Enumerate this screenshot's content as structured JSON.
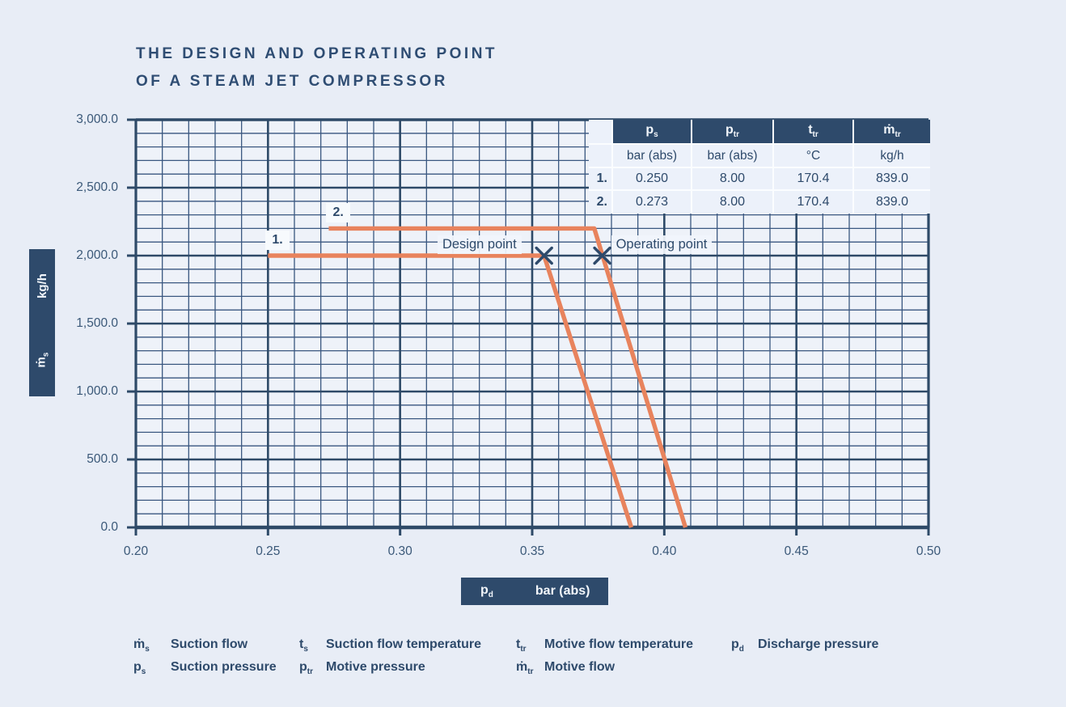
{
  "title": {
    "line1": "THE DESIGN AND OPERATING POINT",
    "line2": "OF A STEAM JET COMPRESSOR"
  },
  "colors": {
    "navy": "#2e4a6b",
    "grid_major": "#2e4a68",
    "grid_minor": "#3a5780",
    "curve_orange": "#e8835d",
    "page_bg": "#e8edf6",
    "plot_bg": "#eef2f9",
    "label_box_bg": "#f7fafd"
  },
  "chart_data": {
    "type": "line",
    "title": "THE DESIGN AND OPERATING POINT OF A STEAM JET COMPRESSOR",
    "grid": true,
    "legend_position": "none",
    "x_axis": {
      "symbol": {
        "base": "p",
        "sub": "d"
      },
      "unit": "bar (abs)",
      "min": 0.2,
      "max": 0.5,
      "major_step": 0.05,
      "minor_step": 0.01,
      "tick_labels": [
        "0.20",
        "0.25",
        "0.30",
        "0.35",
        "0.40",
        "0.45",
        "0.50"
      ]
    },
    "y_axis": {
      "symbol": {
        "base": "ṁ",
        "sub": "s"
      },
      "unit": "kg/h",
      "min": 0,
      "max": 3000,
      "major_step": 500,
      "minor_step": 100,
      "tick_labels": [
        "0.0",
        "500.0",
        "1,000.0",
        "1,500.0",
        "2,000.0",
        "2,500.0",
        "3,000.0"
      ]
    },
    "series": [
      {
        "name": "1.",
        "color": "#e8835d",
        "points": [
          [
            0.25,
            2000
          ],
          [
            0.3545,
            2000
          ],
          [
            0.3875,
            0
          ]
        ]
      },
      {
        "name": "2.",
        "color": "#e8835d",
        "points": [
          [
            0.273,
            2200
          ],
          [
            0.3735,
            2200
          ],
          [
            0.408,
            0
          ]
        ]
      }
    ],
    "annotations": [
      {
        "label": "Design point",
        "x": 0.3545,
        "y": 2000,
        "label_side": "left"
      },
      {
        "label": "Operating point",
        "x": 0.3765,
        "y": 2000,
        "label_side": "right"
      }
    ]
  },
  "table": {
    "row_labels": [
      "1.",
      "2."
    ],
    "columns": [
      {
        "base": "p",
        "sub": "s"
      },
      {
        "base": "p",
        "sub": "tr"
      },
      {
        "base": "t",
        "sub": "tr"
      },
      {
        "base": "ṁ",
        "sub": "tr"
      }
    ],
    "units": [
      "bar (abs)",
      "bar (abs)",
      "°C",
      "kg/h"
    ],
    "rows": [
      [
        "0.250",
        "8.00",
        "170.4",
        "839.0"
      ],
      [
        "0.273",
        "8.00",
        "170.4",
        "839.0"
      ]
    ]
  },
  "legend": {
    "groups": [
      {
        "items": [
          {
            "symbol": {
              "base": "ṁ",
              "sub": "s"
            },
            "label": "Suction flow"
          },
          {
            "symbol": {
              "base": "p",
              "sub": "s"
            },
            "label": "Suction pressure"
          }
        ]
      },
      {
        "items": [
          {
            "symbol": {
              "base": "t",
              "sub": "s"
            },
            "label": "Suction flow temperature"
          },
          {
            "symbol": {
              "base": "p",
              "sub": "tr"
            },
            "label": "Motive pressure"
          }
        ]
      },
      {
        "items": [
          {
            "symbol": {
              "base": "t",
              "sub": "tr"
            },
            "label": "Motive flow temperature"
          },
          {
            "symbol": {
              "base": "ṁ",
              "sub": "tr"
            },
            "label": "Motive flow"
          }
        ]
      },
      {
        "items": [
          {
            "symbol": {
              "base": "p",
              "sub": "d"
            },
            "label": "Discharge pressure"
          }
        ]
      }
    ]
  }
}
